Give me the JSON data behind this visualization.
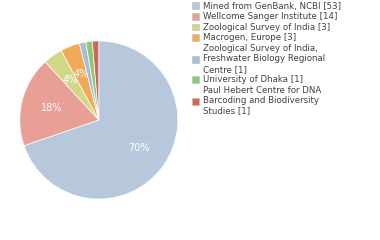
{
  "labels": [
    "Mined from GenBank, NCBI [53]",
    "Wellcome Sanger Institute [14]",
    "Zoological Survey of India [3]",
    "Macrogen, Europe [3]",
    "Zoological Survey of India,\nFreshwater Biology Regional\nCentre [1]",
    "University of Dhaka [1]",
    "Paul Hebert Centre for DNA\nBarcoding and Biodiversity\nStudies [1]"
  ],
  "values": [
    53,
    14,
    3,
    3,
    1,
    1,
    1
  ],
  "colors": [
    "#b8c8dc",
    "#e8a096",
    "#d0d888",
    "#f0aa58",
    "#a8bcd4",
    "#8ec87c",
    "#d06858"
  ],
  "background_color": "#ffffff",
  "text_color": "#404040",
  "fontsize": 7.0,
  "legend_fontsize": 6.2
}
